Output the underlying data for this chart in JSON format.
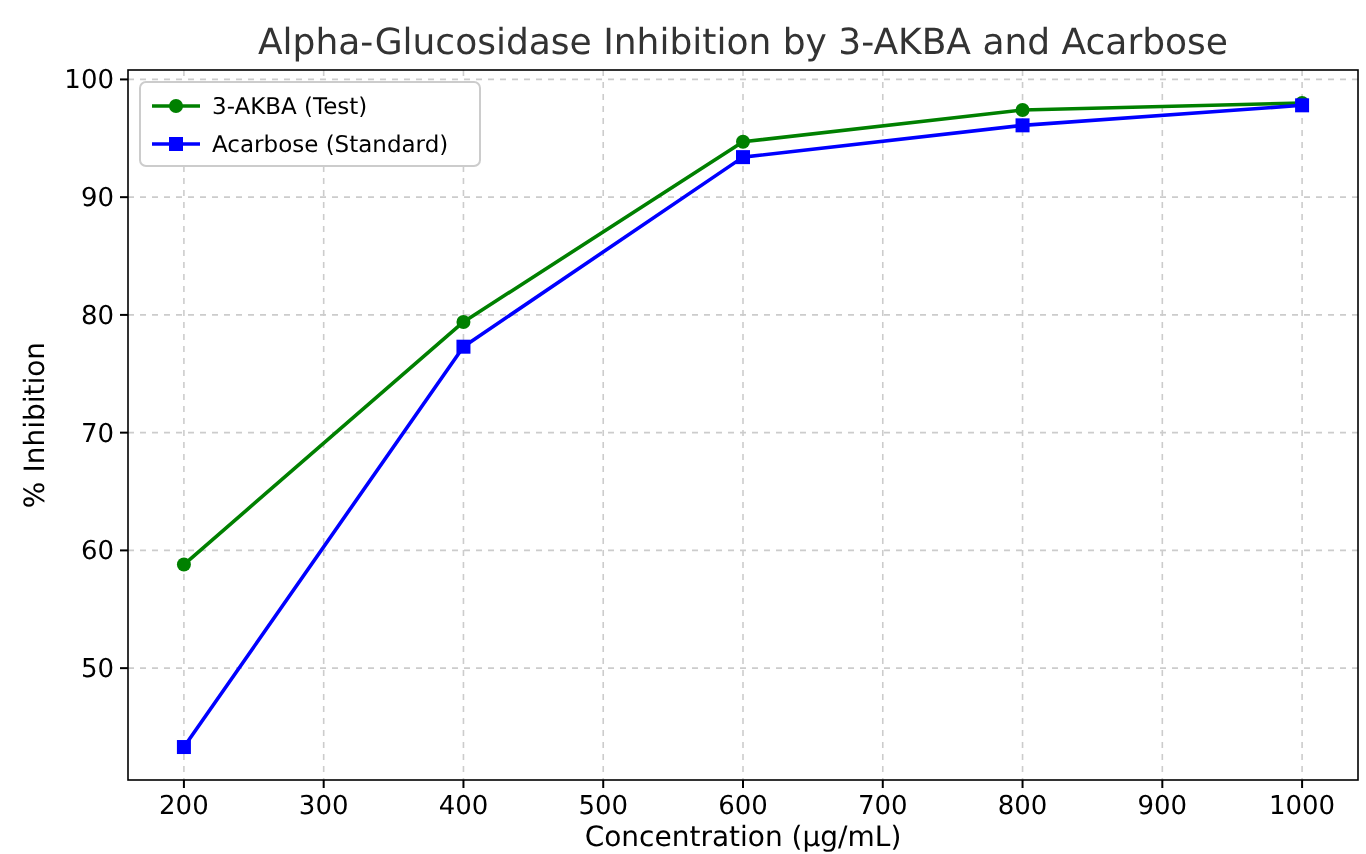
{
  "chart_data": {
    "type": "line",
    "title": "Alpha-Glucosidase Inhibition by 3-AKBA and Acarbose",
    "xlabel": "Concentration (µg/mL)",
    "ylabel": "% Inhibition",
    "x": [
      200,
      400,
      600,
      800,
      1000
    ],
    "series": [
      {
        "name": "3-AKBA (Test)",
        "color": "#008000",
        "marker": "circle",
        "values": [
          58.8,
          79.4,
          94.7,
          97.4,
          98.0
        ]
      },
      {
        "name": "Acarbose (Standard)",
        "color": "#0000ff",
        "marker": "square",
        "values": [
          43.3,
          77.3,
          93.4,
          96.1,
          97.8
        ]
      }
    ],
    "xlim": [
      160,
      1040
    ],
    "xticks": [
      200,
      300,
      400,
      500,
      600,
      700,
      800,
      900,
      1000
    ],
    "ylim": [
      40.5,
      100.8
    ],
    "yticks": [
      50,
      60,
      70,
      80,
      90,
      100
    ],
    "grid": true,
    "legend": "top left",
    "line_style": "solid"
  }
}
